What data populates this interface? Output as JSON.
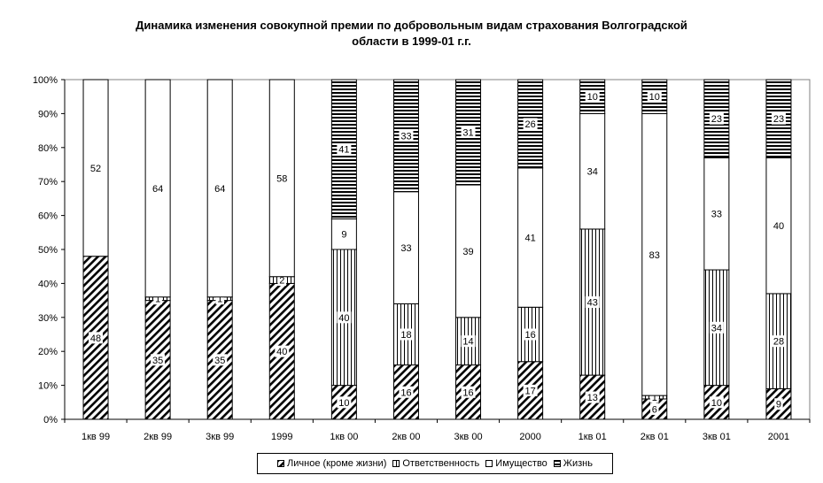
{
  "chart_data": {
    "type": "bar",
    "stacked": true,
    "percent": true,
    "title": "Динамика изменения совокупной премии по добровольным видам страхования Волгоградской области в 1999-01 г.г.",
    "title_lines": [
      "Динамика изменения совокупной премии по добровольным видам страхования Волгоградской",
      "области в 1999-01 г.г."
    ],
    "categories": [
      "1кв 99",
      "2кв 99",
      "3кв 99",
      "1999",
      "1кв 00",
      "2кв 00",
      "3кв 00",
      "2000",
      "1кв 01",
      "2кв 01",
      "3кв 01",
      "2001"
    ],
    "y_ticks": [
      "0%",
      "10%",
      "20%",
      "30%",
      "40%",
      "50%",
      "60%",
      "70%",
      "80%",
      "90%",
      "100%"
    ],
    "ylim": [
      0,
      100
    ],
    "grid": false,
    "legend_position": "bottom",
    "series": [
      {
        "name": "Личное (кроме жизни)",
        "pattern": "diagonal",
        "values": [
          48,
          35,
          35,
          40,
          10,
          16,
          16,
          17,
          13,
          6,
          10,
          9
        ],
        "labels": [
          "48",
          "35",
          "35",
          "40",
          "10",
          "16",
          "16",
          "17",
          "13",
          "6",
          "10",
          "9"
        ]
      },
      {
        "name": "Ответственность",
        "pattern": "vertical",
        "values": [
          0,
          1,
          1,
          2,
          40,
          18,
          14,
          16,
          43,
          1,
          34,
          28
        ],
        "labels": [
          "",
          "1",
          "1",
          "2",
          "40",
          "18",
          "14",
          "16",
          "43",
          "1",
          "34",
          "28"
        ]
      },
      {
        "name": "Имущество",
        "pattern": "none",
        "values": [
          52,
          64,
          64,
          58,
          9,
          33,
          39,
          41,
          34,
          83,
          33,
          40
        ],
        "labels": [
          "52",
          "64",
          "64",
          "58",
          "9",
          "33",
          "39",
          "41",
          "34",
          "83",
          "33",
          "40"
        ]
      },
      {
        "name": "Жизнь",
        "pattern": "horizontal",
        "values": [
          0,
          0,
          0,
          0,
          41,
          33,
          31,
          26,
          10,
          10,
          23,
          23
        ],
        "labels": [
          "",
          "",
          "",
          "",
          "41",
          "33",
          "31",
          "26",
          "10",
          "10",
          "23",
          "23"
        ]
      }
    ]
  }
}
